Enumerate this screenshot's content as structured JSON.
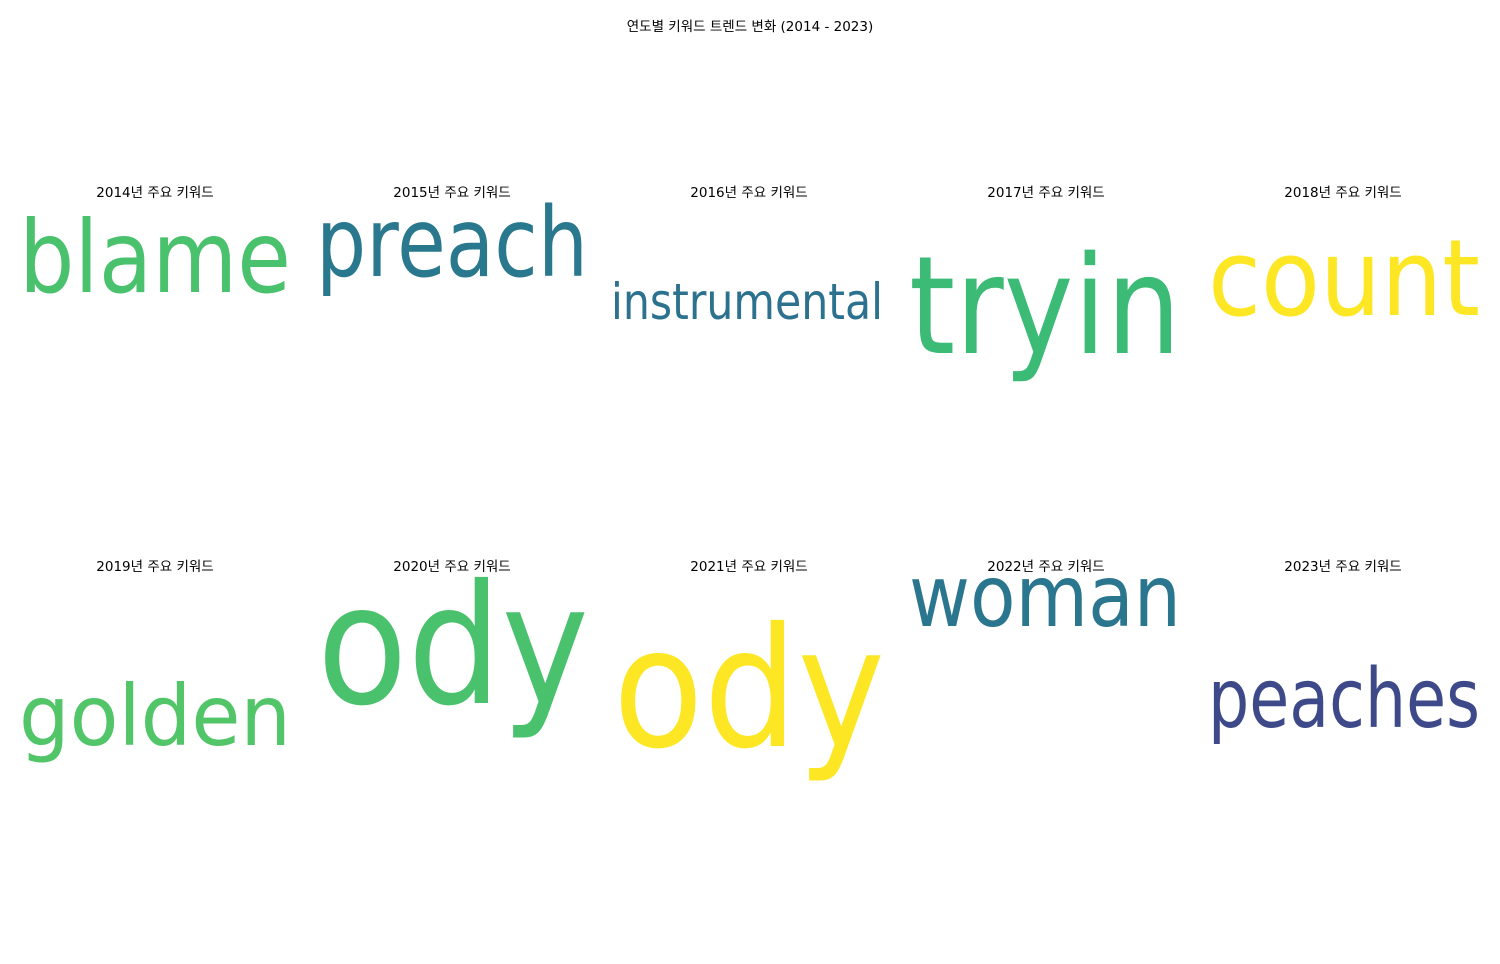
{
  "chart_data": {
    "type": "wordcloud",
    "title": "연도별 키워드 트렌드 변화 (2014 - 2023)",
    "panels": [
      {
        "year": "2014",
        "title": "2014년 주요 키워드",
        "word": "blame",
        "color": "#4ac16d"
      },
      {
        "year": "2015",
        "title": "2015년 주요 키워드",
        "word": "preach",
        "color": "#2a788e"
      },
      {
        "year": "2016",
        "title": "2016년 주요 키워드",
        "word": "instrumental",
        "color": "#2c728e"
      },
      {
        "year": "2017",
        "title": "2017년 주요 키워드",
        "word": "tryin",
        "color": "#3bbb75"
      },
      {
        "year": "2018",
        "title": "2018년 주요 키워드",
        "word": "count",
        "color": "#fde725"
      },
      {
        "year": "2019",
        "title": "2019년 주요 키워드",
        "word": "golden",
        "color": "#52c569"
      },
      {
        "year": "2020",
        "title": "2020년 주요 키워드",
        "word": "ody",
        "color": "#4ac16d"
      },
      {
        "year": "2021",
        "title": "2021년 주요 키워드",
        "word": "ody",
        "color": "#fde725"
      },
      {
        "year": "2022",
        "title": "2022년 주요 키워드",
        "word": "woman",
        "color": "#2a768e"
      },
      {
        "year": "2023",
        "title": "2023년 주요 키워드",
        "word": "peaches",
        "color": "#3e4989"
      }
    ]
  }
}
